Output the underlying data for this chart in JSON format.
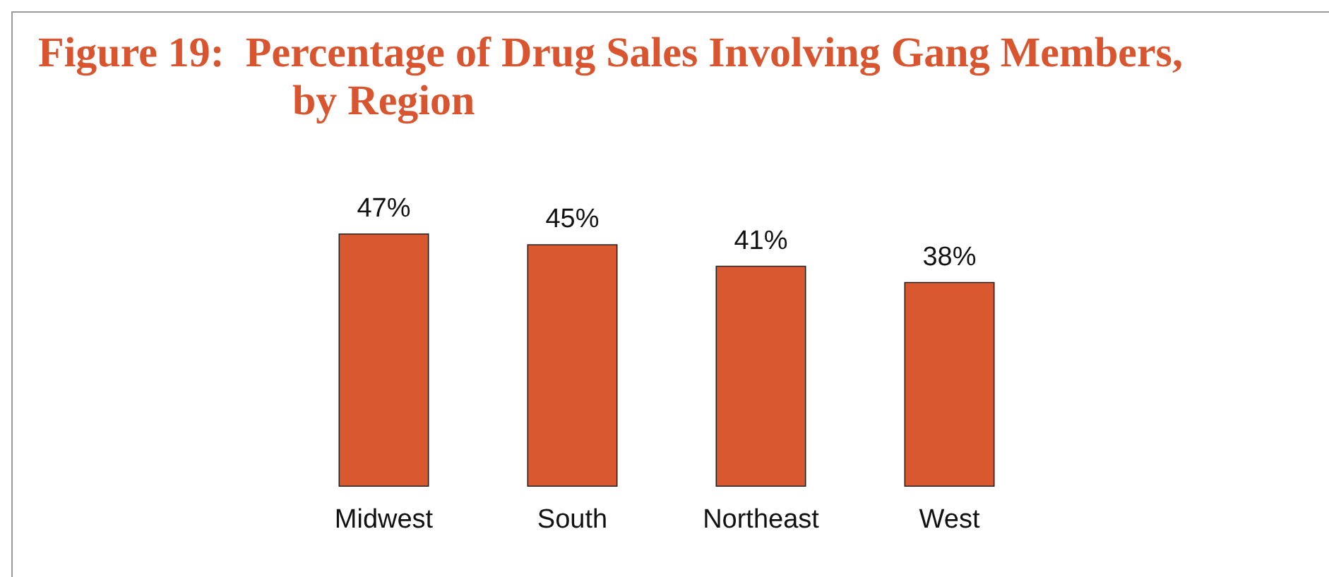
{
  "chart_data": {
    "type": "bar",
    "title": "Figure 19:  Percentage of Drug Sales Involving Gang Members, by Region",
    "categories": [
      "Midwest",
      "South",
      "Northeast",
      "West"
    ],
    "values": [
      47,
      45,
      41,
      38
    ],
    "value_labels": [
      "47%",
      "45%",
      "41%",
      "38%"
    ],
    "color": "#d9582f"
  }
}
